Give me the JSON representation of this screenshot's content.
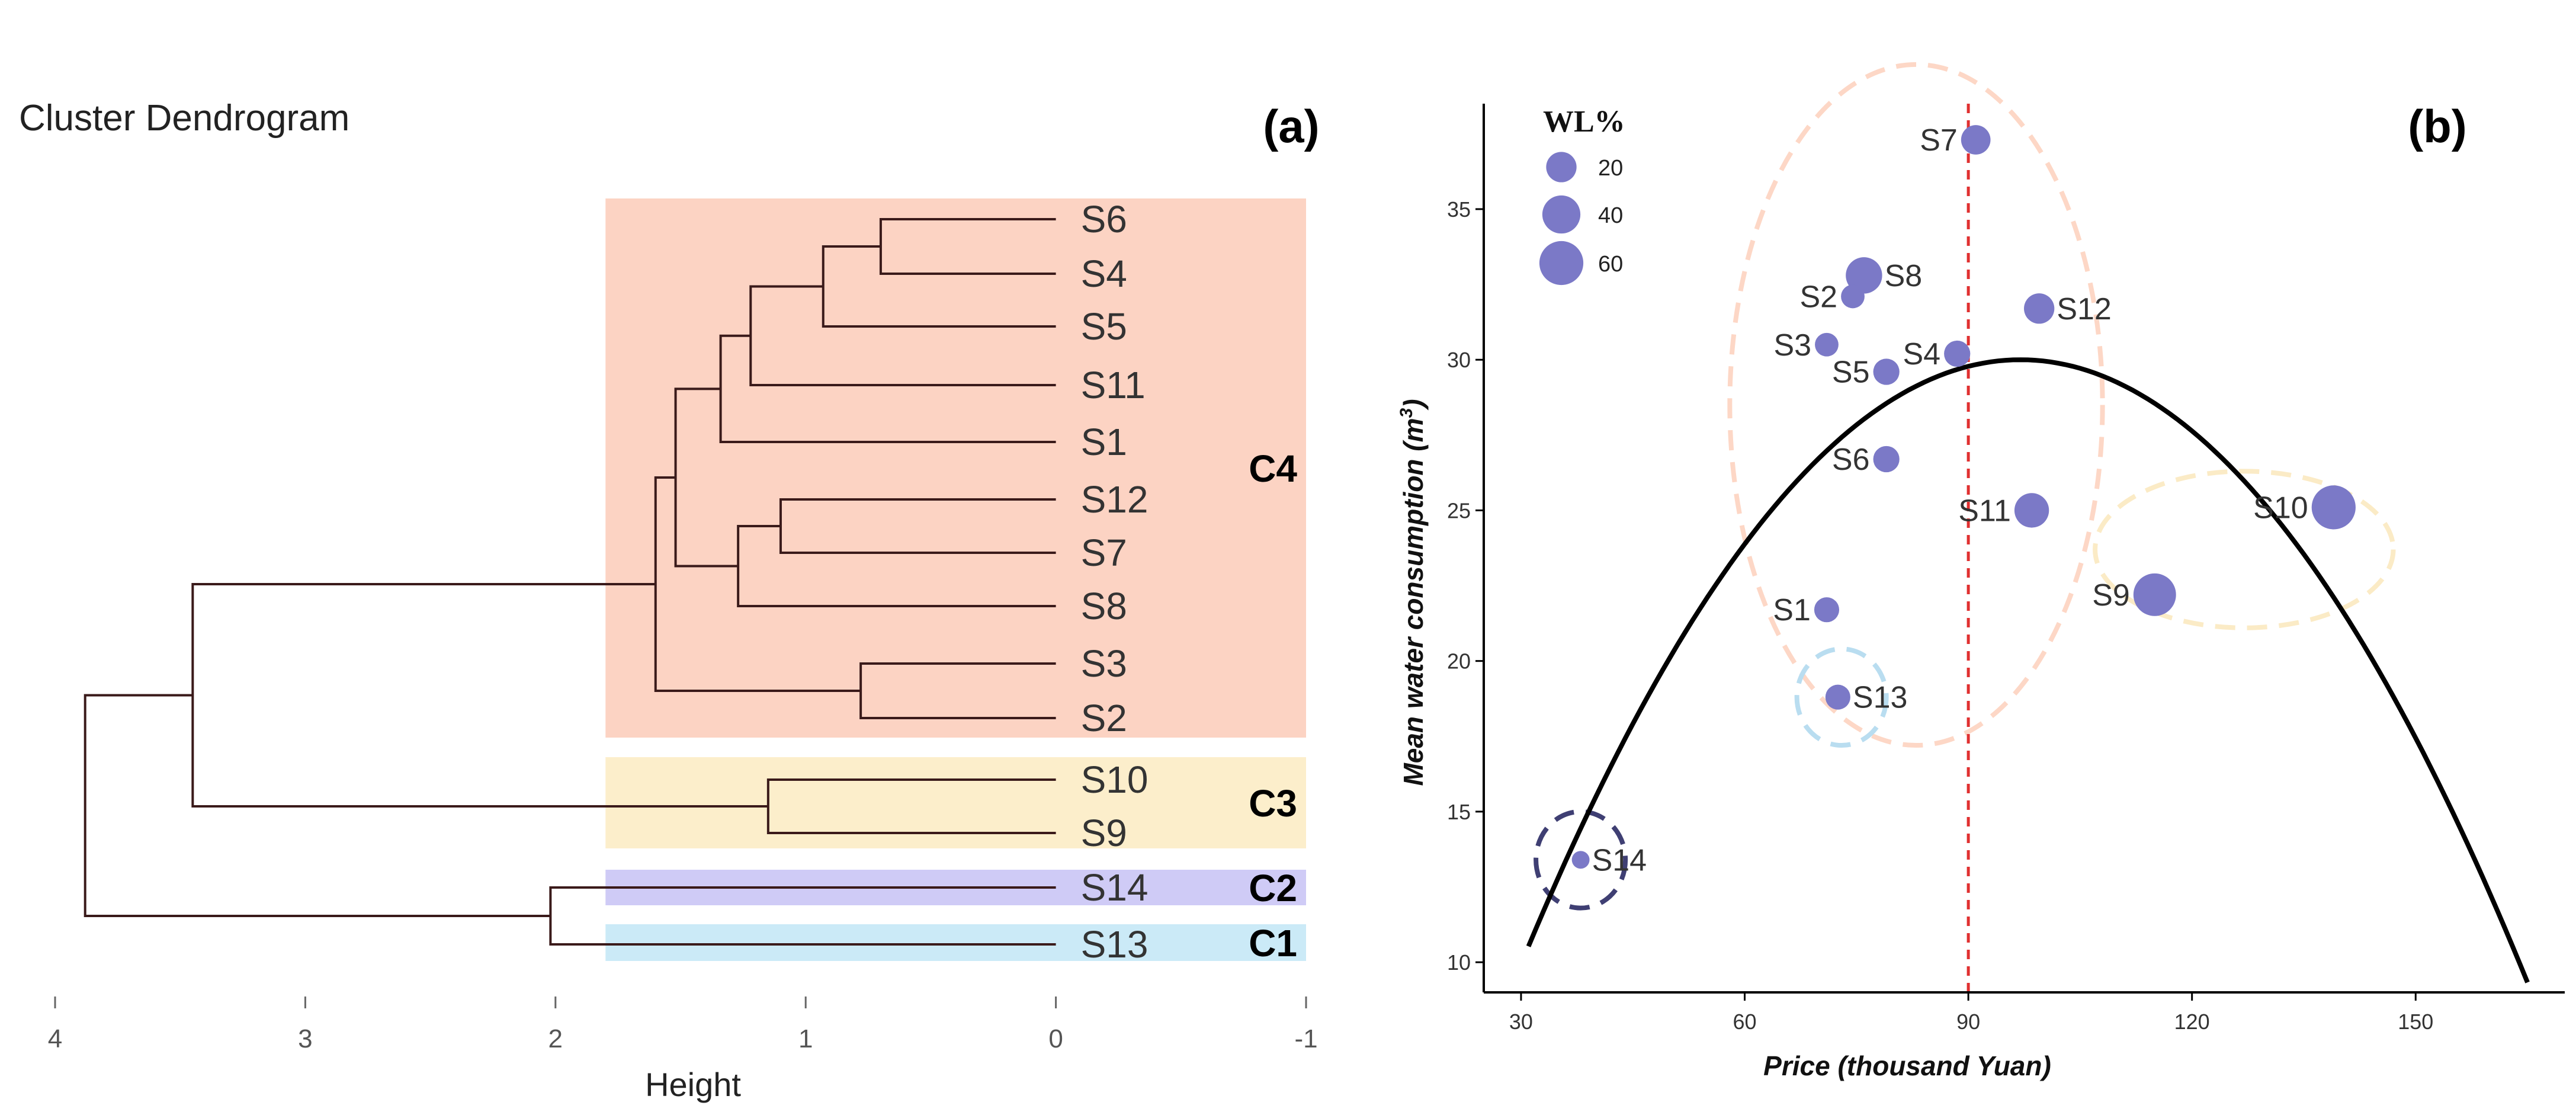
{
  "chart_data": [
    {
      "panel": "(a)",
      "type": "dendrogram",
      "title": "Cluster Dendrogram",
      "xlabel": "Height",
      "xlim": [
        4,
        -1
      ],
      "xticks": [
        4,
        3,
        2,
        1,
        0,
        -1
      ],
      "leaves": [
        "S6",
        "S4",
        "S5",
        "S11",
        "S1",
        "S12",
        "S7",
        "S8",
        "S3",
        "S2",
        "S10",
        "S9",
        "S14",
        "S13"
      ],
      "merges": [
        {
          "a": "S6",
          "b": "S4",
          "height": 0.7,
          "id": "m1"
        },
        {
          "a": "m1",
          "b": "S5",
          "height": 0.93,
          "id": "m2"
        },
        {
          "a": "m2",
          "b": "S11",
          "height": 1.22,
          "id": "m3"
        },
        {
          "a": "m3",
          "b": "S1",
          "height": 1.34,
          "id": "m4"
        },
        {
          "a": "S12",
          "b": "S7",
          "height": 1.1,
          "id": "m5"
        },
        {
          "a": "m5",
          "b": "S8",
          "height": 1.27,
          "id": "m6"
        },
        {
          "a": "m4",
          "b": "m6",
          "height": 1.52,
          "id": "m7"
        },
        {
          "a": "S3",
          "b": "S2",
          "height": 0.78,
          "id": "m8"
        },
        {
          "a": "m7",
          "b": "m8",
          "height": 1.6,
          "id": "m9"
        },
        {
          "a": "S10",
          "b": "S9",
          "height": 1.15,
          "id": "m10"
        },
        {
          "a": "m9",
          "b": "m10",
          "height": 3.45,
          "id": "m11"
        },
        {
          "a": "S14",
          "b": "S13",
          "height": 2.02,
          "id": "m12"
        },
        {
          "a": "m11",
          "b": "m12",
          "height": 3.88,
          "id": "m13"
        }
      ],
      "clusters": [
        {
          "name": "C4",
          "members": [
            "S6",
            "S4",
            "S5",
            "S11",
            "S1",
            "S12",
            "S7",
            "S8",
            "S3",
            "S2"
          ],
          "color": "#FCD3C3"
        },
        {
          "name": "C3",
          "members": [
            "S10",
            "S9"
          ],
          "color": "#FCEECB"
        },
        {
          "name": "C2",
          "members": [
            "S14"
          ],
          "color": "#CFCBF6"
        },
        {
          "name": "C1",
          "members": [
            "S13"
          ],
          "color": "#CBEAF7"
        }
      ],
      "cut_height": 1.8,
      "line_color": "#3a1a1a"
    },
    {
      "panel": "(b)",
      "type": "scatter",
      "xlabel": "Price (thousand Yuan)",
      "ylabel": "Mean water consumption (m³)",
      "xlim": [
        25,
        170
      ],
      "ylim": [
        9,
        38.5
      ],
      "xticks": [
        30,
        60,
        90,
        120,
        150
      ],
      "yticks": [
        10,
        15,
        20,
        25,
        30,
        35
      ],
      "size_variable": "WL%",
      "points": [
        {
          "label": "S7",
          "x": 91,
          "y": 37.3,
          "wl": 18,
          "label_side": "left"
        },
        {
          "label": "S8",
          "x": 76,
          "y": 32.8,
          "wl": 35,
          "label_side": "right"
        },
        {
          "label": "S2",
          "x": 74.5,
          "y": 32.1,
          "wl": 8,
          "label_side": "left"
        },
        {
          "label": "S12",
          "x": 99.5,
          "y": 31.7,
          "wl": 20,
          "label_side": "right"
        },
        {
          "label": "S3",
          "x": 71,
          "y": 30.5,
          "wl": 8,
          "label_side": "left"
        },
        {
          "label": "S4",
          "x": 88.5,
          "y": 30.2,
          "wl": 12,
          "label_side": "left"
        },
        {
          "label": "S5",
          "x": 79,
          "y": 29.6,
          "wl": 12,
          "label_side": "left"
        },
        {
          "label": "S6",
          "x": 79,
          "y": 26.7,
          "wl": 12,
          "label_side": "left"
        },
        {
          "label": "S11",
          "x": 98.5,
          "y": 25,
          "wl": 30,
          "label_side": "left"
        },
        {
          "label": "S10",
          "x": 139,
          "y": 25.1,
          "wl": 60,
          "label_side": "left"
        },
        {
          "label": "S9",
          "x": 115,
          "y": 22.2,
          "wl": 55,
          "label_side": "left"
        },
        {
          "label": "S1",
          "x": 71,
          "y": 21.7,
          "wl": 10,
          "label_side": "left"
        },
        {
          "label": "S13",
          "x": 72.5,
          "y": 18.8,
          "wl": 10,
          "label_side": "right"
        },
        {
          "label": "S14",
          "x": 38,
          "y": 13.4,
          "wl": 2,
          "label_side": "right"
        }
      ],
      "point_color": "#7B79C7",
      "fitted_curve": {
        "type": "quadratic",
        "vertex_x": 97,
        "vertex_y": 30,
        "a": -0.00447,
        "x_range": [
          31,
          165
        ],
        "color": "#000000"
      },
      "vline": {
        "x": 90,
        "color": "#E03030",
        "style": "dashed"
      },
      "cluster_ellipses": [
        {
          "cluster": "C4",
          "cx": 83,
          "cy": 28.5,
          "rx": 25,
          "ry": 11.3,
          "color": "#FDD7C6"
        },
        {
          "cluster": "C3",
          "cx": 127,
          "cy": 23.7,
          "rx": 20,
          "ry": 2.6,
          "color": "#FBEBC6"
        },
        {
          "cluster": "C1",
          "cx": 73,
          "cy": 18.8,
          "rx": 6,
          "ry": 1.6,
          "color": "#B9DDF0"
        },
        {
          "cluster": "C2",
          "cx": 38,
          "cy": 13.4,
          "rx": 6,
          "ry": 1.6,
          "color": "#3F3F73"
        }
      ],
      "legend": {
        "title": "WL%",
        "entries": [
          {
            "label": "20",
            "value": 20
          },
          {
            "label": "40",
            "value": 40
          },
          {
            "label": "60",
            "value": 60
          }
        ],
        "position": "top-left"
      }
    }
  ]
}
